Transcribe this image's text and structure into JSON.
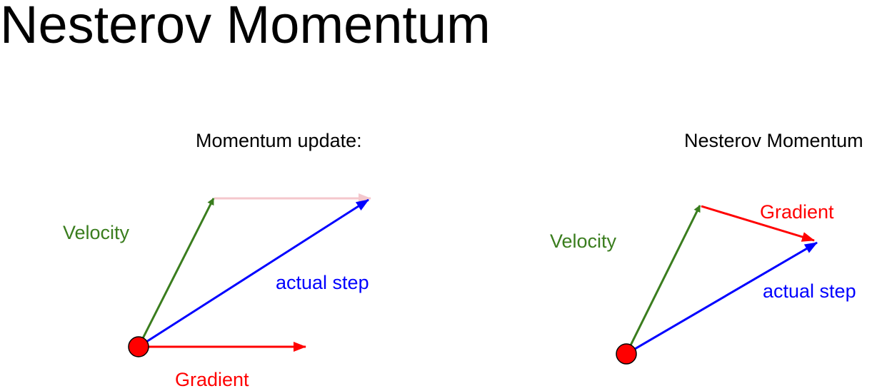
{
  "title": "Nesterov Momentum",
  "left_diagram": {
    "title": "Momentum update:",
    "velocity_label": "Velocity",
    "step_label": "actual step",
    "gradient_label": "Gradient"
  },
  "right_diagram": {
    "title": "Nesterov Momentum",
    "velocity_label": "Velocity",
    "step_label": "actual step",
    "gradient_label": "Gradient"
  },
  "colors": {
    "velocity": "#3a7d1e",
    "gradient": "#ff0000",
    "step": "#0000ff",
    "ghost_gradient": "#f4c7cc",
    "point_fill": "#ff0000"
  }
}
